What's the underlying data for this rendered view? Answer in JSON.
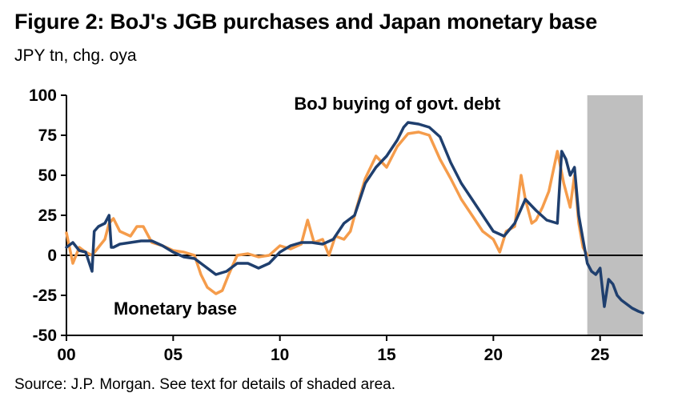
{
  "title": "Figure 2: BoJ's JGB purchases and Japan monetary base",
  "subtitle": "JPY tn, chg. oya",
  "source": "Source: J.P. Morgan. See text for details of shaded area.",
  "chart_data": {
    "type": "line",
    "x_unit": "years since 2000",
    "xlim": [
      0,
      27
    ],
    "ylim": [
      -50,
      100
    ],
    "x_ticks": [
      0,
      5,
      10,
      15,
      20,
      25
    ],
    "x_tick_labels": [
      "00",
      "05",
      "10",
      "15",
      "20",
      "25"
    ],
    "y_ticks": [
      100,
      75,
      50,
      25,
      0,
      -25,
      -50
    ],
    "y_tick_labels": [
      "100",
      "75",
      "50",
      "25",
      "0",
      "-25",
      "-50"
    ],
    "shaded_region": {
      "x": [
        24.4,
        27
      ]
    },
    "grid": false,
    "legend": "none",
    "colors": {
      "monetary_base": "#1f3f6e",
      "boj_jgb": "#f59c4b",
      "shade": "#bfbfbf"
    },
    "annotations": [
      {
        "text": "BoJ buying of govt. debt",
        "x": 15.5,
        "y": 91,
        "series": "boj_jgb"
      },
      {
        "text": "Monetary base",
        "x": 5.1,
        "y": -37,
        "series": "monetary_base"
      }
    ],
    "series": [
      {
        "key": "monetary_base",
        "x": [
          0,
          0.3,
          0.6,
          0.9,
          1.2,
          1.3,
          1.5,
          1.8,
          2.0,
          2.1,
          2.2,
          2.5,
          3.0,
          3.5,
          4.0,
          4.5,
          5.0,
          5.5,
          6.0,
          6.3,
          6.6,
          7.0,
          7.5,
          8.0,
          8.5,
          9.0,
          9.5,
          10.0,
          10.5,
          11.0,
          11.5,
          12.0,
          12.5,
          13.0,
          13.5,
          14.0,
          14.5,
          15.0,
          15.5,
          15.8,
          16.0,
          16.5,
          17.0,
          17.5,
          18.0,
          18.5,
          19.0,
          19.5,
          20.0,
          20.5,
          21.0,
          21.5,
          22.0,
          22.5,
          23.0,
          23.2,
          23.4,
          23.6,
          23.8,
          24.0,
          24.2,
          24.4,
          24.6,
          24.8,
          25.0,
          25.2,
          25.4,
          25.6,
          25.8,
          26.0,
          26.5,
          26.8,
          27.0
        ],
        "values": [
          5,
          8,
          3,
          2,
          -10,
          15,
          18,
          20,
          25,
          5,
          5,
          7,
          8,
          9,
          9,
          6,
          2,
          -1,
          -2,
          -5,
          -8,
          -12,
          -10,
          -5,
          -5,
          -8,
          -5,
          2,
          6,
          8,
          8,
          7,
          10,
          20,
          25,
          45,
          55,
          62,
          72,
          80,
          83,
          82,
          80,
          74,
          58,
          45,
          35,
          25,
          15,
          12,
          20,
          35,
          28,
          22,
          20,
          65,
          60,
          50,
          55,
          25,
          10,
          -5,
          -10,
          -12,
          -8,
          -32,
          -15,
          -18,
          -25,
          -28,
          -33,
          -35,
          -36
        ]
      },
      {
        "key": "boj_jgb",
        "x": [
          0,
          0.3,
          0.6,
          0.9,
          1.2,
          1.5,
          1.8,
          2.0,
          2.2,
          2.5,
          3.0,
          3.3,
          3.6,
          4.0,
          4.5,
          5.0,
          5.5,
          6.0,
          6.3,
          6.6,
          7.0,
          7.3,
          7.6,
          8.0,
          8.5,
          9.0,
          9.5,
          10.0,
          10.5,
          11.0,
          11.3,
          11.6,
          12.0,
          12.3,
          12.6,
          13.0,
          13.3,
          13.6,
          14.0,
          14.5,
          15.0,
          15.5,
          16.0,
          16.5,
          17.0,
          17.5,
          18.0,
          18.5,
          19.0,
          19.5,
          20.0,
          20.3,
          20.6,
          21.0,
          21.3,
          21.5,
          21.8,
          22.0,
          22.3,
          22.6,
          23.0,
          23.3,
          23.6,
          23.8,
          24.0,
          24.2,
          24.4
        ],
        "values": [
          14,
          -5,
          5,
          2,
          0,
          5,
          10,
          20,
          23,
          15,
          12,
          18,
          18,
          8,
          6,
          3,
          2,
          0,
          -12,
          -20,
          -24,
          -22,
          -12,
          0,
          1,
          -1,
          0,
          6,
          4,
          7,
          22,
          8,
          10,
          0,
          12,
          10,
          15,
          30,
          48,
          62,
          55,
          68,
          76,
          77,
          75,
          60,
          48,
          35,
          25,
          15,
          10,
          2,
          15,
          18,
          50,
          35,
          20,
          22,
          30,
          40,
          65,
          45,
          30,
          50,
          20,
          5,
          0
        ]
      }
    ]
  }
}
